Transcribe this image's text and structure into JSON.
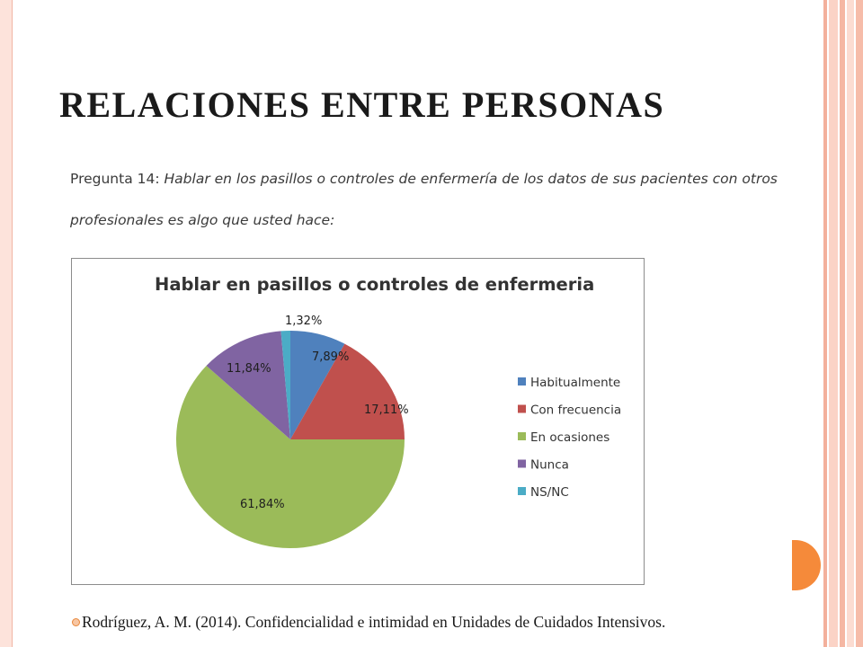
{
  "slide": {
    "title": "RELACIONES ENTRE PERSONAS",
    "citation": "Rodríguez, A. M. (2014). Confidencialidad e intimidad en Unidades de Cuidados Intensivos."
  },
  "question": {
    "prefix": "Pregunta 14: ",
    "text": "Hablar en los pasillos o controles de enfermería de los datos de sus pacientes con otros profesionales es algo que usted hace:"
  },
  "colors": {
    "accent_orange": "#f58a3a",
    "frame_pink": "#f6b9a6"
  },
  "chart_data": {
    "type": "pie",
    "title": "Hablar en pasillos o controles de enfermeria",
    "legend_position": "right",
    "slices": [
      {
        "label": "Habitualmente",
        "value": 7.89,
        "display": "7,89%",
        "color": "#4f81bd"
      },
      {
        "label": "Con frecuencia",
        "value": 17.11,
        "display": "17,11%",
        "color": "#c0504d"
      },
      {
        "label": "En ocasiones",
        "value": 61.84,
        "display": "61,84%",
        "color": "#9bbb59"
      },
      {
        "label": "Nunca",
        "value": 11.84,
        "display": "11,84%",
        "color": "#8064a2"
      },
      {
        "label": "NS/NC",
        "value": 1.32,
        "display": "1,32%",
        "color": "#4bacc6"
      }
    ]
  }
}
